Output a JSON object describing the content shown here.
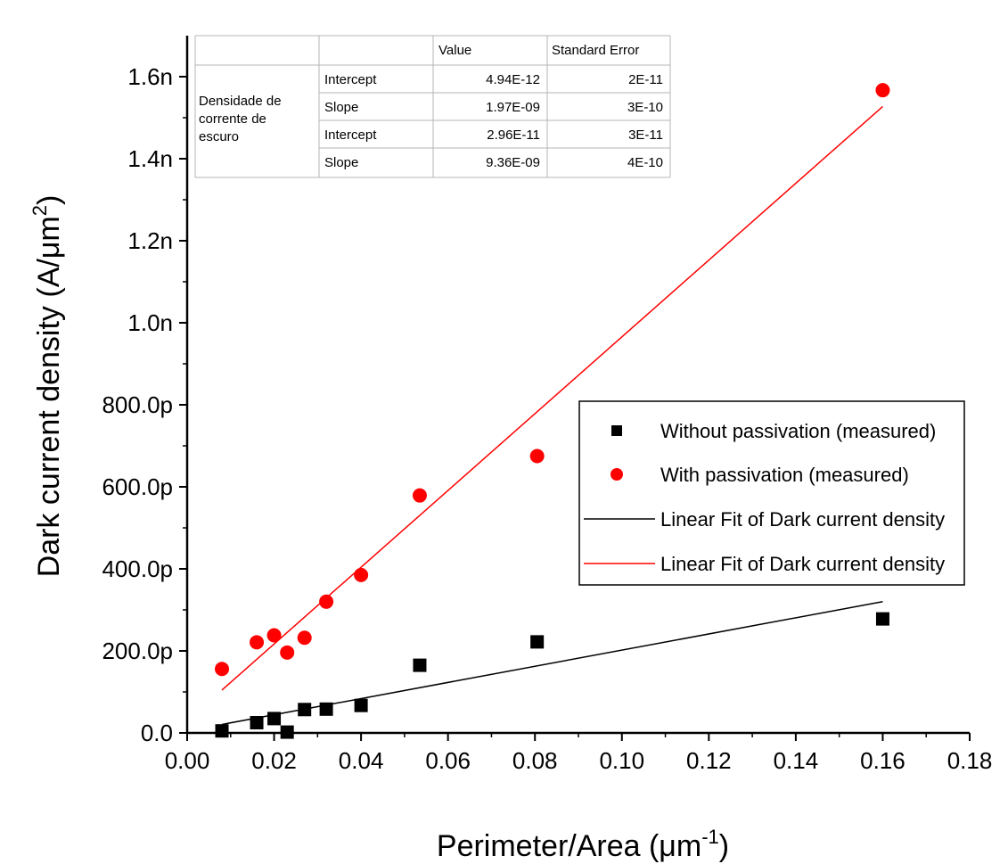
{
  "chart_data": {
    "type": "scatter",
    "xlabel": {
      "main": "Perimeter/Area (μm",
      "sup": "-1",
      "tail": ")"
    },
    "ylabel": {
      "main": "Dark current density (A/μm",
      "sup": "2",
      "tail": ")"
    },
    "xlim": [
      0.0,
      0.18
    ],
    "ylim": [
      0,
      1.7e-09
    ],
    "x_ticks": [
      {
        "value": 0.0,
        "label": "0.00"
      },
      {
        "value": 0.02,
        "label": "0.02"
      },
      {
        "value": 0.04,
        "label": "0.04"
      },
      {
        "value": 0.06,
        "label": "0.06"
      },
      {
        "value": 0.08,
        "label": "0.08"
      },
      {
        "value": 0.1,
        "label": "0.10"
      },
      {
        "value": 0.12,
        "label": "0.12"
      },
      {
        "value": 0.14,
        "label": "0.14"
      },
      {
        "value": 0.16,
        "label": "0.16"
      },
      {
        "value": 0.18,
        "label": "0.18"
      }
    ],
    "y_ticks": [
      {
        "value": 0,
        "label": "0.0"
      },
      {
        "value": 2e-10,
        "label": "200.0p"
      },
      {
        "value": 4e-10,
        "label": "400.0p"
      },
      {
        "value": 6e-10,
        "label": "600.0p"
      },
      {
        "value": 8e-10,
        "label": "800.0p"
      },
      {
        "value": 1e-09,
        "label": "1.0n"
      },
      {
        "value": 1.2e-09,
        "label": "1.2n"
      },
      {
        "value": 1.4e-09,
        "label": "1.4n"
      },
      {
        "value": 1.6e-09,
        "label": "1.6n"
      }
    ],
    "series": [
      {
        "name": "Without passivation (measured)",
        "marker": "square",
        "color": "#000000",
        "x": [
          0.008,
          0.016,
          0.02,
          0.023,
          0.027,
          0.032,
          0.04,
          0.0535,
          0.0805,
          0.16
        ],
        "y": [
          5e-12,
          2.5e-11,
          3.5e-11,
          2e-12,
          5.7e-11,
          5.8e-11,
          6.7e-11,
          1.65e-10,
          2.22e-10,
          2.78e-10
        ]
      },
      {
        "name": "With passivation (measured)",
        "marker": "circle",
        "color": "#ff0000",
        "x": [
          0.008,
          0.016,
          0.02,
          0.023,
          0.027,
          0.032,
          0.04,
          0.0535,
          0.0805,
          0.16
        ],
        "y": [
          1.56e-10,
          2.21e-10,
          2.38e-10,
          1.96e-10,
          2.32e-10,
          3.2e-10,
          3.85e-10,
          5.79e-10,
          6.75e-10,
          1.567e-09
        ]
      }
    ],
    "fits": [
      {
        "name": "Linear Fit of Dark current density",
        "color": "#000000",
        "x_range": [
          0.008,
          0.16
        ],
        "intercept": 4.94e-12,
        "slope": 1.97e-09
      },
      {
        "name": "Linear Fit of Dark current density",
        "color": "#ff0000",
        "x_range": [
          0.008,
          0.16
        ],
        "intercept": 2.96e-11,
        "slope": 9.36e-09
      }
    ],
    "legend_position": "right, middle",
    "grid": false
  },
  "fit_table": {
    "headers": [
      "",
      "",
      "Value",
      "Standard Error"
    ],
    "group_label": [
      "Densidade de",
      "corrente de",
      "escuro"
    ],
    "rows": [
      {
        "param": "Intercept",
        "value": "4.94E-12",
        "error": "2E-11"
      },
      {
        "param": "Slope",
        "value": "1.97E-09",
        "error": "3E-10"
      },
      {
        "param": "Intercept",
        "value": "2.96E-11",
        "error": "3E-11"
      },
      {
        "param": "Slope",
        "value": "9.36E-09",
        "error": "4E-10"
      }
    ]
  }
}
